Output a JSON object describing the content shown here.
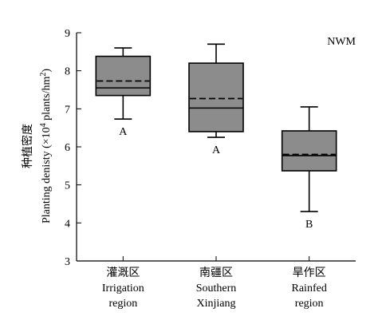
{
  "chart_data": {
    "type": "box",
    "annotation": "NWM",
    "ylabel_cn": "种植密度",
    "ylabel_en_pre": "Planting denisty (×10",
    "ylabel_sup": "4",
    "ylabel_en_post": " plants/hm",
    "ylabel_sup2": "2",
    "ylabel_close": ")",
    "ylim": [
      3,
      9
    ],
    "yticks": [
      3,
      4,
      5,
      6,
      7,
      8,
      9
    ],
    "categories": [
      {
        "cn": "灌溉区",
        "en1": "Irrigation",
        "en2": "region"
      },
      {
        "cn": "南疆区",
        "en1": "Southern",
        "en2": "Xinjiang"
      },
      {
        "cn": "旱作区",
        "en1": "Rainfed",
        "en2": "region"
      }
    ],
    "boxes": [
      {
        "min": 6.73,
        "q1": 7.35,
        "median": 7.55,
        "mean": 7.73,
        "q3": 8.38,
        "max": 8.6,
        "letter": "A"
      },
      {
        "min": 6.25,
        "q1": 6.4,
        "median": 7.02,
        "mean": 7.27,
        "q3": 8.2,
        "max": 8.7,
        "letter": "A"
      },
      {
        "min": 4.3,
        "q1": 5.37,
        "median": 5.77,
        "mean": 5.8,
        "q3": 6.42,
        "max": 7.05,
        "letter": "B"
      }
    ]
  }
}
